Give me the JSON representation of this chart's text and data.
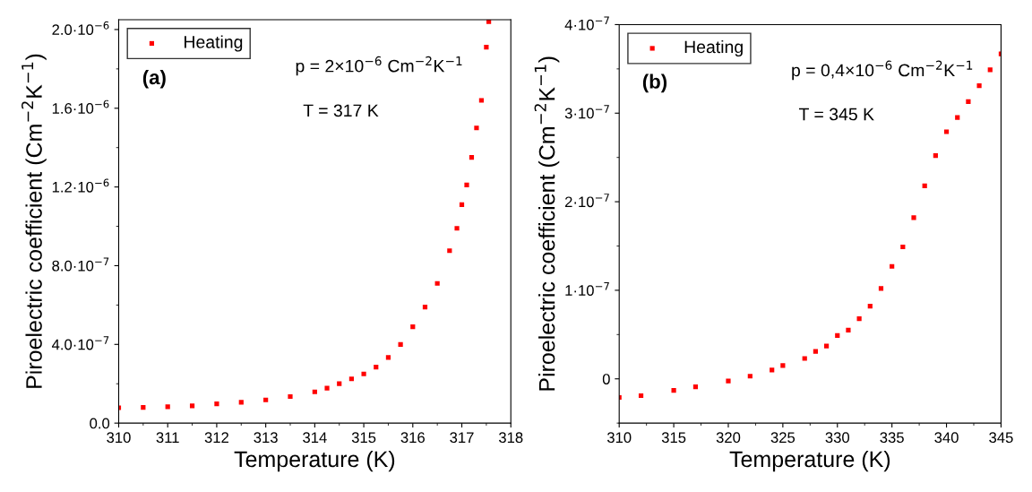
{
  "chart_data": [
    {
      "type": "scatter",
      "xlabel": "Temperature (K)",
      "ylabel": "Piroelectric coefficient (Cm$^{−2}$K$^{−1}$)",
      "annotations": [
        "(a)",
        "p = 2×10$^{−6}$ Cm$^{−2}$K$^{−1}$",
        "T = 317 K"
      ],
      "series": [
        {
          "name": "Heating",
          "color": "#ff0000",
          "x": [
            310,
            310.5,
            311,
            311.5,
            312,
            312.5,
            313,
            313.5,
            314,
            314.25,
            314.5,
            314.75,
            315,
            315.25,
            315.5,
            315.75,
            316,
            316.25,
            316.5,
            316.75,
            316.9,
            317,
            317.1,
            317.2,
            317.3,
            317.4,
            317.5,
            317.55
          ],
          "values": [
            7.8e-08,
            8e-08,
            8.3e-08,
            8.8e-08,
            9.8e-08,
            1.06e-07,
            1.18e-07,
            1.35e-07,
            1.59e-07,
            1.78e-07,
            2e-07,
            2.25e-07,
            2.5e-07,
            2.85e-07,
            3.34e-07,
            4e-07,
            4.9e-07,
            5.9e-07,
            7.1e-07,
            8.76e-07,
            9.9e-07,
            1.11e-06,
            1.21e-06,
            1.35e-06,
            1.5e-06,
            1.64e-06,
            1.91e-06,
            2.04e-06
          ]
        }
      ],
      "xlim": [
        310,
        318
      ],
      "xticks": [
        310,
        311,
        312,
        313,
        314,
        315,
        316,
        317,
        318
      ],
      "ylim": [
        0,
        2.05e-06
      ],
      "yticks": [
        {
          "value": 0,
          "label": "0.0"
        },
        {
          "value": 4e-07,
          "label": "4.0·10$^{−7}$"
        },
        {
          "value": 8e-07,
          "label": "8.0·10$^{−7}$"
        },
        {
          "value": 1.2e-06,
          "label": "1.2·10$^{−6}$"
        },
        {
          "value": 1.6e-06,
          "label": "1.6·10$^{−6}$"
        },
        {
          "value": 2e-06,
          "label": "2.0·10$^{−6}$"
        }
      ],
      "marker": "square",
      "legend": "top left",
      "grid": false
    },
    {
      "type": "scatter",
      "xlabel": "Temperature (K)",
      "ylabel": "Piroelectric coefficient (Cm$^{−2}$K$^{−1}$)",
      "annotations": [
        "(b)",
        "p = 0,4×10$^{−6}$ Cm$^{−2}$K$^{−1}$",
        "T = 345 K"
      ],
      "series": [
        {
          "name": "Heating",
          "color": "#ff0000",
          "x": [
            310,
            312,
            315,
            317,
            320,
            322,
            324,
            325,
            327,
            328,
            329,
            330,
            331,
            332,
            333,
            334,
            335,
            336,
            337,
            338,
            339,
            340,
            341,
            342,
            343,
            344,
            345
          ],
          "values": [
            -2.1e-08,
            -1.9e-08,
            -1.3e-08,
            -9e-09,
            -2.5e-09,
            3e-09,
            1e-08,
            1.5e-08,
            2.3e-08,
            3.1e-08,
            3.7e-08,
            4.9e-08,
            5.5e-08,
            6.8e-08,
            8.2e-08,
            1.02e-07,
            1.27e-07,
            1.49e-07,
            1.82e-07,
            2.18e-07,
            2.52e-07,
            2.79e-07,
            2.95e-07,
            3.13e-07,
            3.31e-07,
            3.49e-07,
            3.67e-07
          ]
        }
      ],
      "xlim": [
        310,
        345
      ],
      "xticks": [
        310,
        315,
        320,
        325,
        330,
        335,
        340,
        345
      ],
      "ylim": [
        -5e-08,
        4e-07
      ],
      "yticks": [
        {
          "value": 0,
          "label": "0"
        },
        {
          "value": 1e-07,
          "label": "1·10$^{−7}$"
        },
        {
          "value": 2e-07,
          "label": "2·10$^{−7}$"
        },
        {
          "value": 3e-07,
          "label": "3·10$^{−7}$"
        },
        {
          "value": 4e-07,
          "label": "4·10$^{−7}$"
        }
      ],
      "marker": "square",
      "legend": "top left",
      "grid": false
    }
  ]
}
